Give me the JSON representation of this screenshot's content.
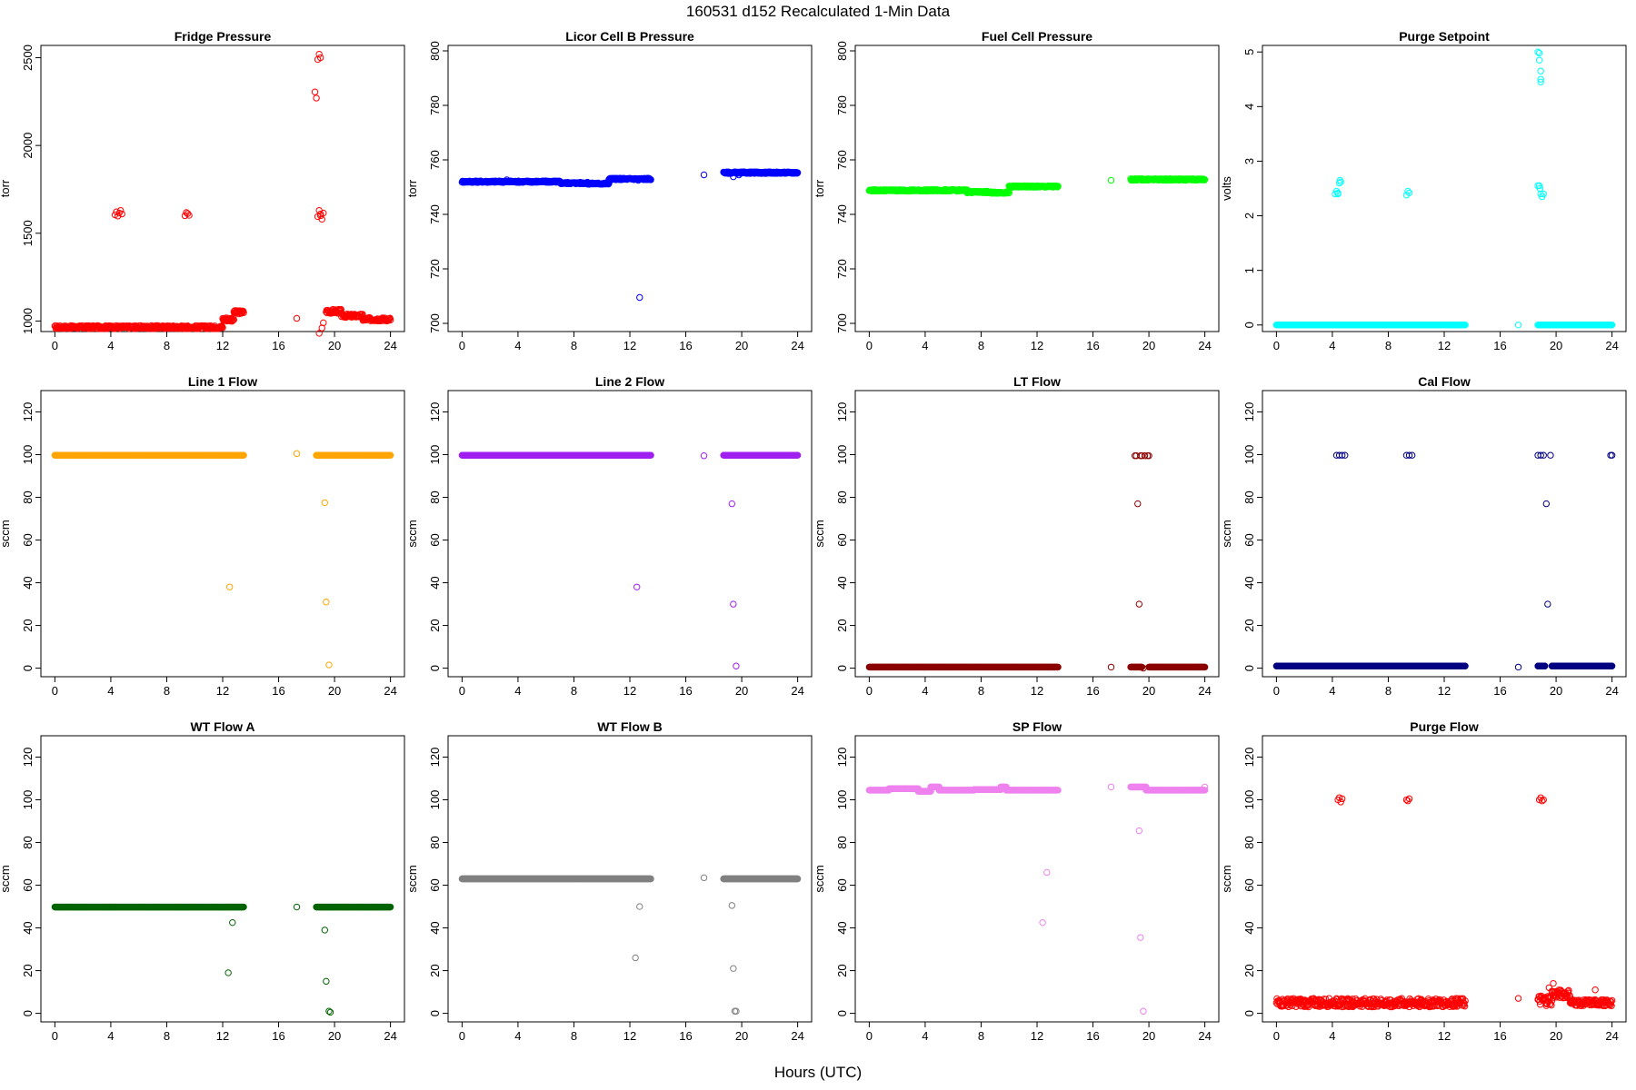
{
  "page": {
    "title": "160531    d152    Recalculated 1-Min Data",
    "xlabel": "Hours (UTC)"
  },
  "chart_data": [
    {
      "type": "scatter",
      "title": "Fridge Pressure",
      "ylabel": "torr",
      "color": "#ff0000",
      "xlim": [
        -1,
        25
      ],
      "ylim": [
        940,
        2570
      ],
      "yticks": [
        1000,
        1500,
        2000,
        2500
      ],
      "xticks": [
        0,
        4,
        8,
        12,
        16,
        20,
        24
      ],
      "segments": [
        [
          0,
          12.0,
          965,
          9
        ],
        [
          12.0,
          12.8,
          1010,
          12
        ],
        [
          12.8,
          13.5,
          1050,
          10
        ],
        [
          19.4,
          20.5,
          1055,
          12
        ],
        [
          20.5,
          22,
          1030,
          10
        ],
        [
          22,
          24,
          1010,
          10
        ]
      ],
      "points": [
        [
          4.3,
          1605
        ],
        [
          4.4,
          1622
        ],
        [
          4.5,
          1598
        ],
        [
          4.6,
          1615
        ],
        [
          4.7,
          1630
        ],
        [
          4.8,
          1610
        ],
        [
          9.3,
          1600
        ],
        [
          9.4,
          1618
        ],
        [
          9.5,
          1612
        ],
        [
          9.6,
          1602
        ],
        [
          17.3,
          1015
        ],
        [
          18.6,
          2305
        ],
        [
          18.7,
          2270
        ],
        [
          18.8,
          2490
        ],
        [
          18.9,
          2520
        ],
        [
          19.0,
          2500
        ],
        [
          18.9,
          1630
        ],
        [
          19.0,
          1600
        ],
        [
          19.1,
          1580
        ],
        [
          19.2,
          1615
        ],
        [
          18.8,
          1595
        ],
        [
          19.0,
          1610
        ],
        [
          18.9,
          930
        ],
        [
          19.1,
          960
        ],
        [
          19.2,
          990
        ]
      ]
    },
    {
      "type": "scatter",
      "title": "Licor Cell B Pressure",
      "ylabel": "torr",
      "color": "#0000ff",
      "xlim": [
        -1,
        25
      ],
      "ylim": [
        697,
        802
      ],
      "yticks": [
        700,
        720,
        740,
        760,
        780,
        800
      ],
      "xticks": [
        0,
        4,
        8,
        12,
        16,
        20,
        24
      ],
      "segments": [
        [
          0,
          7,
          752,
          0.3
        ],
        [
          7,
          9,
          751.5,
          0.3
        ],
        [
          9,
          10.5,
          751.3,
          0.3
        ],
        [
          10.5,
          13.5,
          753,
          0.3
        ],
        [
          18.7,
          24,
          755.3,
          0.3
        ]
      ],
      "points": [
        [
          12.7,
          709.5
        ],
        [
          12.6,
          752.5
        ],
        [
          17.3,
          754.5
        ],
        [
          19.4,
          753.8
        ],
        [
          19.8,
          754.5
        ],
        [
          3.2,
          752.7
        ]
      ]
    },
    {
      "type": "scatter",
      "title": "Fuel Cell Pressure",
      "ylabel": "torr",
      "color": "#00ff00",
      "xlim": [
        -1,
        25
      ],
      "ylim": [
        697,
        802
      ],
      "yticks": [
        700,
        720,
        740,
        760,
        780,
        800
      ],
      "xticks": [
        0,
        4,
        8,
        12,
        16,
        20,
        24
      ],
      "segments": [
        [
          0,
          7,
          748.8,
          0.3
        ],
        [
          7,
          8.5,
          748.2,
          0.3
        ],
        [
          8.5,
          10,
          748.0,
          0.3
        ],
        [
          10,
          13.5,
          750.2,
          0.3
        ],
        [
          18.7,
          24,
          752.8,
          0.3
        ]
      ],
      "points": [
        [
          17.3,
          752.5
        ],
        [
          3.2,
          749.0
        ]
      ]
    },
    {
      "type": "scatter",
      "title": "Purge Setpoint",
      "ylabel": "volts",
      "color": "#00ffff",
      "xlim": [
        -1,
        25
      ],
      "ylim": [
        -0.12,
        5.12
      ],
      "yticks": [
        0,
        1,
        2,
        3,
        4,
        5
      ],
      "xticks": [
        0,
        4,
        8,
        12,
        16,
        20,
        24
      ],
      "segments": [
        [
          0,
          13.5,
          0,
          0
        ],
        [
          18.7,
          24,
          0,
          0
        ]
      ],
      "points": [
        [
          4.2,
          2.4
        ],
        [
          4.3,
          2.45
        ],
        [
          4.4,
          2.42
        ],
        [
          4.5,
          2.6
        ],
        [
          4.55,
          2.65
        ],
        [
          4.6,
          2.62
        ],
        [
          4.4,
          2.4
        ],
        [
          9.3,
          2.38
        ],
        [
          9.4,
          2.45
        ],
        [
          9.5,
          2.42
        ],
        [
          17.3,
          0
        ],
        [
          18.7,
          5.0
        ],
        [
          18.8,
          4.98
        ],
        [
          18.8,
          4.85
        ],
        [
          18.9,
          4.65
        ],
        [
          18.9,
          4.45
        ],
        [
          18.9,
          4.5
        ],
        [
          18.7,
          2.55
        ],
        [
          18.8,
          2.55
        ],
        [
          18.9,
          2.4
        ],
        [
          19.0,
          2.35
        ],
        [
          19.1,
          2.4
        ],
        [
          18.85,
          2.5
        ]
      ]
    },
    {
      "type": "scatter",
      "title": "Line 1 Flow",
      "ylabel": "sccm",
      "color": "#ffa500",
      "xlim": [
        -1,
        25
      ],
      "ylim": [
        -4,
        130
      ],
      "yticks": [
        0,
        20,
        40,
        60,
        80,
        100,
        120
      ],
      "xticks": [
        0,
        4,
        8,
        12,
        16,
        20,
        24
      ],
      "segments": [
        [
          0,
          13.5,
          99.7,
          0
        ],
        [
          18.7,
          24,
          99.7,
          0
        ]
      ],
      "points": [
        [
          12.5,
          38
        ],
        [
          17.3,
          100.5
        ],
        [
          19.3,
          77.5
        ],
        [
          19.4,
          31
        ],
        [
          19.6,
          1.5
        ]
      ]
    },
    {
      "type": "scatter",
      "title": "Line 2 Flow",
      "ylabel": "sccm",
      "color": "#a020f0",
      "xlim": [
        -1,
        25
      ],
      "ylim": [
        -4,
        130
      ],
      "yticks": [
        0,
        20,
        40,
        60,
        80,
        100,
        120
      ],
      "xticks": [
        0,
        4,
        8,
        12,
        16,
        20,
        24
      ],
      "segments": [
        [
          0,
          13.5,
          99.7,
          0
        ],
        [
          18.7,
          24,
          99.7,
          0
        ]
      ],
      "points": [
        [
          12.5,
          38
        ],
        [
          17.3,
          99.5
        ],
        [
          19.3,
          77
        ],
        [
          19.4,
          30
        ],
        [
          19.6,
          1
        ]
      ]
    },
    {
      "type": "scatter",
      "title": "LT Flow",
      "ylabel": "sccm",
      "color": "#8b0000",
      "xlim": [
        -1,
        25
      ],
      "ylim": [
        -4,
        130
      ],
      "yticks": [
        0,
        20,
        40,
        60,
        80,
        100,
        120
      ],
      "xticks": [
        0,
        4,
        8,
        12,
        16,
        20,
        24
      ],
      "segments": [
        [
          0,
          13.5,
          0.5,
          0
        ],
        [
          18.7,
          19.5,
          0.5,
          0
        ],
        [
          20,
          24,
          0.5,
          0
        ]
      ],
      "points": [
        [
          17.3,
          0.5
        ],
        [
          19.0,
          99.5
        ],
        [
          19.1,
          99.5
        ],
        [
          19.4,
          99.5
        ],
        [
          19.5,
          99.5
        ],
        [
          19.7,
          99.5
        ],
        [
          19.9,
          99.5
        ],
        [
          20.0,
          99.5
        ],
        [
          19.2,
          77
        ],
        [
          19.3,
          30
        ],
        [
          19.6,
          0
        ]
      ]
    },
    {
      "type": "scatter",
      "title": "Cal Flow",
      "ylabel": "sccm",
      "color": "#000080",
      "xlim": [
        -1,
        25
      ],
      "ylim": [
        -4,
        130
      ],
      "yticks": [
        0,
        20,
        40,
        60,
        80,
        100,
        120
      ],
      "xticks": [
        0,
        4,
        8,
        12,
        16,
        20,
        24
      ],
      "segments": [
        [
          0,
          13.5,
          1,
          0
        ],
        [
          18.7,
          19.2,
          1,
          0
        ],
        [
          19.7,
          24,
          1,
          0
        ]
      ],
      "points": [
        [
          4.3,
          99.7
        ],
        [
          4.5,
          99.7
        ],
        [
          4.7,
          99.7
        ],
        [
          4.9,
          99.7
        ],
        [
          9.3,
          99.7
        ],
        [
          9.5,
          99.7
        ],
        [
          9.7,
          99.7
        ],
        [
          18.7,
          99.7
        ],
        [
          18.9,
          99.7
        ],
        [
          19.1,
          99.7
        ],
        [
          19.6,
          99.7
        ],
        [
          19.3,
          77
        ],
        [
          19.4,
          30
        ],
        [
          17.3,
          0.5
        ],
        [
          23.9,
          99.7
        ],
        [
          24.0,
          99.7
        ]
      ]
    },
    {
      "type": "scatter",
      "title": "WT Flow A",
      "ylabel": "sccm",
      "color": "#006400",
      "xlim": [
        -1,
        25
      ],
      "ylim": [
        -4,
        130
      ],
      "yticks": [
        0,
        20,
        40,
        60,
        80,
        100,
        120
      ],
      "xticks": [
        0,
        4,
        8,
        12,
        16,
        20,
        24
      ],
      "segments": [
        [
          0,
          13.5,
          49.8,
          0
        ],
        [
          18.7,
          24,
          49.8,
          0
        ]
      ],
      "points": [
        [
          12.4,
          19
        ],
        [
          12.7,
          42.5
        ],
        [
          17.3,
          49.8
        ],
        [
          19.3,
          39
        ],
        [
          19.4,
          15
        ],
        [
          19.6,
          1
        ],
        [
          19.7,
          0.5
        ]
      ]
    },
    {
      "type": "scatter",
      "title": "WT Flow B",
      "ylabel": "sccm",
      "color": "#808080",
      "xlim": [
        -1,
        25
      ],
      "ylim": [
        -4,
        130
      ],
      "yticks": [
        0,
        20,
        40,
        60,
        80,
        100,
        120
      ],
      "xticks": [
        0,
        4,
        8,
        12,
        16,
        20,
        24
      ],
      "segments": [
        [
          0,
          13.5,
          63,
          0
        ],
        [
          18.7,
          24,
          63,
          0
        ]
      ],
      "points": [
        [
          12.4,
          26
        ],
        [
          12.7,
          50
        ],
        [
          17.3,
          63.5
        ],
        [
          19.3,
          50.5
        ],
        [
          19.4,
          21
        ],
        [
          19.6,
          1
        ],
        [
          19.5,
          1
        ]
      ]
    },
    {
      "type": "scatter",
      "title": "SP Flow",
      "ylabel": "sccm",
      "color": "#ee82ee",
      "xlim": [
        -1,
        25
      ],
      "ylim": [
        -4,
        130
      ],
      "yticks": [
        0,
        20,
        40,
        60,
        80,
        100,
        120
      ],
      "xticks": [
        0,
        4,
        8,
        12,
        16,
        20,
        24
      ],
      "segments": [
        [
          0,
          1.4,
          104.5,
          0
        ],
        [
          1.4,
          3.5,
          105.2,
          0
        ],
        [
          3.5,
          4.4,
          104,
          0
        ],
        [
          4.4,
          5.0,
          106,
          0
        ],
        [
          5.0,
          7.5,
          104.5,
          0
        ],
        [
          7.5,
          9.4,
          104.8,
          0
        ],
        [
          9.4,
          9.8,
          106,
          0
        ],
        [
          9.8,
          13.5,
          104.5,
          0
        ],
        [
          18.7,
          19.8,
          106,
          0
        ],
        [
          19.8,
          24,
          104.5,
          0
        ]
      ],
      "points": [
        [
          12.4,
          42.5
        ],
        [
          12.7,
          66
        ],
        [
          17.3,
          106
        ],
        [
          19.3,
          85.5
        ],
        [
          19.4,
          35.5
        ],
        [
          19.6,
          1
        ],
        [
          24.0,
          106
        ]
      ]
    },
    {
      "type": "scatter",
      "title": "Purge Flow",
      "ylabel": "sccm",
      "color": "#ff0000",
      "xlim": [
        -1,
        25
      ],
      "ylim": [
        -4,
        130
      ],
      "yticks": [
        0,
        20,
        40,
        60,
        80,
        100,
        120
      ],
      "xticks": [
        0,
        4,
        8,
        12,
        16,
        20,
        24
      ],
      "segments": [
        [
          0,
          13.5,
          5,
          2
        ],
        [
          18.7,
          19.7,
          6,
          2.5
        ],
        [
          19.7,
          21,
          9,
          2
        ],
        [
          21,
          24,
          5,
          1.5
        ]
      ],
      "points": [
        [
          4.4,
          100
        ],
        [
          4.5,
          101
        ],
        [
          4.6,
          99
        ],
        [
          4.7,
          100.5
        ],
        [
          9.3,
          100
        ],
        [
          9.4,
          99.5
        ],
        [
          9.5,
          100.5
        ],
        [
          18.8,
          100
        ],
        [
          18.9,
          101
        ],
        [
          19.0,
          99.5
        ],
        [
          19.1,
          100
        ],
        [
          17.3,
          7
        ],
        [
          19.5,
          12
        ],
        [
          19.8,
          14
        ],
        [
          19.7,
          10
        ],
        [
          22.8,
          11
        ]
      ]
    }
  ]
}
